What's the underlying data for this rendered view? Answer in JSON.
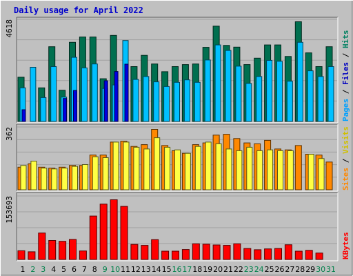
{
  "chart_data": {
    "type": "bar",
    "title": "Daily usage for April 2022",
    "days": [
      "1",
      "2",
      "3",
      "4",
      "5",
      "6",
      "7",
      "8",
      "9",
      "10",
      "11",
      "12",
      "13",
      "14",
      "15",
      "16",
      "17",
      "18",
      "19",
      "20",
      "21",
      "22",
      "23",
      "24",
      "25",
      "26",
      "27",
      "28",
      "29",
      "30",
      "31"
    ],
    "weekend_days": [
      "2",
      "3",
      "9",
      "10",
      "16",
      "17",
      "23",
      "24",
      "30",
      "31"
    ],
    "colors": {
      "hits": "#006f4f",
      "files": "#00c0ff",
      "pages": "#0000e0",
      "visits": "#ff8800",
      "sites": "#ffff44",
      "kbytes": "#ff0000",
      "weekday_label": "#000000",
      "weekend_label": "#00804a",
      "frame_light": "#ffffff",
      "frame_dark": "#606060"
    },
    "panels": [
      {
        "id": "hits",
        "ymax": "4618",
        "ymax_value": 4618,
        "legend": [
          {
            "text": "Pages",
            "color": "#00a0ff"
          },
          {
            "text": " / ",
            "color": "#000000"
          },
          {
            "text": "Files",
            "color": "#0000c0"
          },
          {
            "text": " / ",
            "color": "#000000"
          },
          {
            "text": "Hits",
            "color": "#008060"
          }
        ],
        "series": [
          {
            "name": "Hits",
            "color": "#006f4f",
            "values": [
              2000,
              0,
              1520,
              3380,
              1410,
              3580,
              3820,
              3820,
              1930,
              3890,
              0,
              2480,
              2990,
              2600,
              2250,
              2480,
              2570,
              2600,
              3350,
              4310,
              3440,
              3360,
              2570,
              2860,
              3460,
              3460,
              2940,
              4510,
              3100,
              2480,
              3380
            ]
          },
          {
            "name": "Files",
            "color": "#00c0ff",
            "values": [
              1520,
              2450,
              1080,
              2480,
              1100,
              2900,
              2420,
              2600,
              1490,
              1650,
              3660,
              1900,
              2030,
              1790,
              1580,
              1770,
              1880,
              1770,
              2780,
              3460,
              3210,
              2500,
              1720,
              2030,
              2760,
              2720,
              1820,
              3580,
              2290,
              2030,
              2480
            ]
          },
          {
            "name": "Pages",
            "color": "#0000e0",
            "values": [
              530,
              0,
              0,
              0,
              1040,
              1400,
              0,
              0,
              1840,
              2260,
              2590,
              0,
              0,
              0,
              0,
              0,
              0,
              0,
              0,
              0,
              0,
              0,
              0,
              0,
              0,
              0,
              0,
              0,
              0,
              0,
              0
            ]
          }
        ]
      },
      {
        "id": "visits",
        "ymax": "362",
        "ymax_value": 362,
        "legend": [
          {
            "text": "Sites",
            "color": "#ff8800"
          },
          {
            "text": " / ",
            "color": "#000000"
          },
          {
            "text": "Visits",
            "color": "#d0c000"
          }
        ],
        "series": [
          {
            "name": "Visits",
            "color": "#ff8800",
            "values": [
              130,
              150,
              130,
              125,
              130,
              140,
              140,
              200,
              200,
              275,
              280,
              250,
              260,
              348,
              255,
              225,
              210,
              260,
              270,
              315,
              320,
              295,
              270,
              265,
              285,
              235,
              230,
              255,
              205,
              200,
              160
            ]
          },
          {
            "name": "Sites",
            "color": "#ffff44",
            "values": [
              140,
              165,
              125,
              120,
              125,
              135,
              145,
              190,
              185,
              275,
              275,
              245,
              235,
              300,
              245,
              230,
              210,
              250,
              275,
              265,
              235,
              225,
              245,
              225,
              230,
              225,
              225,
              0,
              205,
              180,
              0
            ]
          }
        ]
      },
      {
        "id": "kbytes",
        "ymax": "153693",
        "ymax_value": 153693,
        "legend": [
          {
            "text": "KBytes",
            "color": "#ff0000"
          }
        ],
        "series": [
          {
            "name": "KBytes",
            "color": "#ff0000",
            "values": [
              21000,
              18500,
              64000,
              46000,
              44000,
              48500,
              20500,
              105000,
              134000,
              144500,
              128500,
              36500,
              34000,
              48000,
              20000,
              20000,
              24000,
              38000,
              37000,
              35000,
              34000,
              38000,
              26500,
              23500,
              25500,
              26500,
              35500,
              20000,
              22000,
              15500,
              0
            ]
          }
        ]
      }
    ]
  }
}
